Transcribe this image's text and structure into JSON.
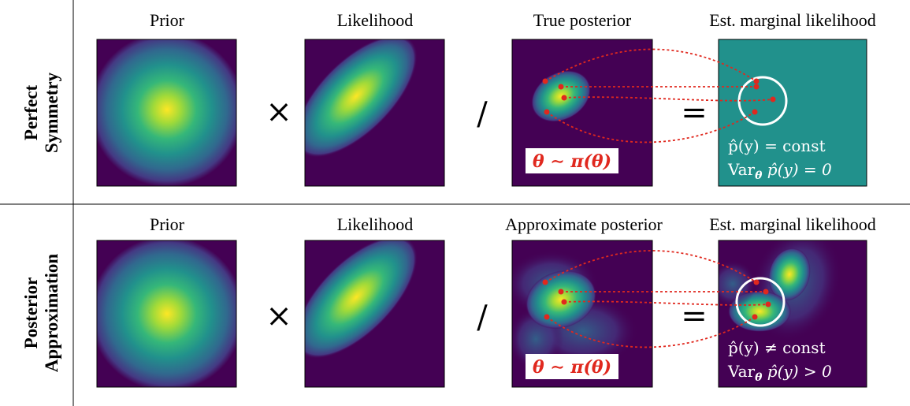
{
  "rows": [
    {
      "label_line1": "Perfect",
      "label_line2": "Symmetry",
      "panels": [
        {
          "title": "Prior"
        },
        {
          "title": "Likelihood"
        },
        {
          "title": "True posterior"
        },
        {
          "title": "Est. marginal likelihood"
        }
      ],
      "theta_label": "θ ∼ π(θ)",
      "est_line1": "p̂(y) = const",
      "est_line2": "Var",
      "est_line2_sub": "θ",
      "est_line2_rest": " p̂(y) = 0"
    },
    {
      "label_line1": "Posterior",
      "label_line2": "Approximation",
      "panels": [
        {
          "title": "Prior"
        },
        {
          "title": "Likelihood"
        },
        {
          "title": "Approximate posterior"
        },
        {
          "title": "Est. marginal likelihood"
        }
      ],
      "theta_label": "θ ∼ π(θ)",
      "est_line1": "p̂(y) ≠ const",
      "est_line2": "Var",
      "est_line2_sub": "θ",
      "est_line2_rest": " p̂(y) > 0"
    }
  ],
  "operators": {
    "times": "×",
    "divide": "/",
    "equals": "="
  },
  "colors": {
    "viridis_bg": "#440154",
    "teal": "#21918c",
    "yellow": "#fde725",
    "sample_red": "#e0281e"
  }
}
